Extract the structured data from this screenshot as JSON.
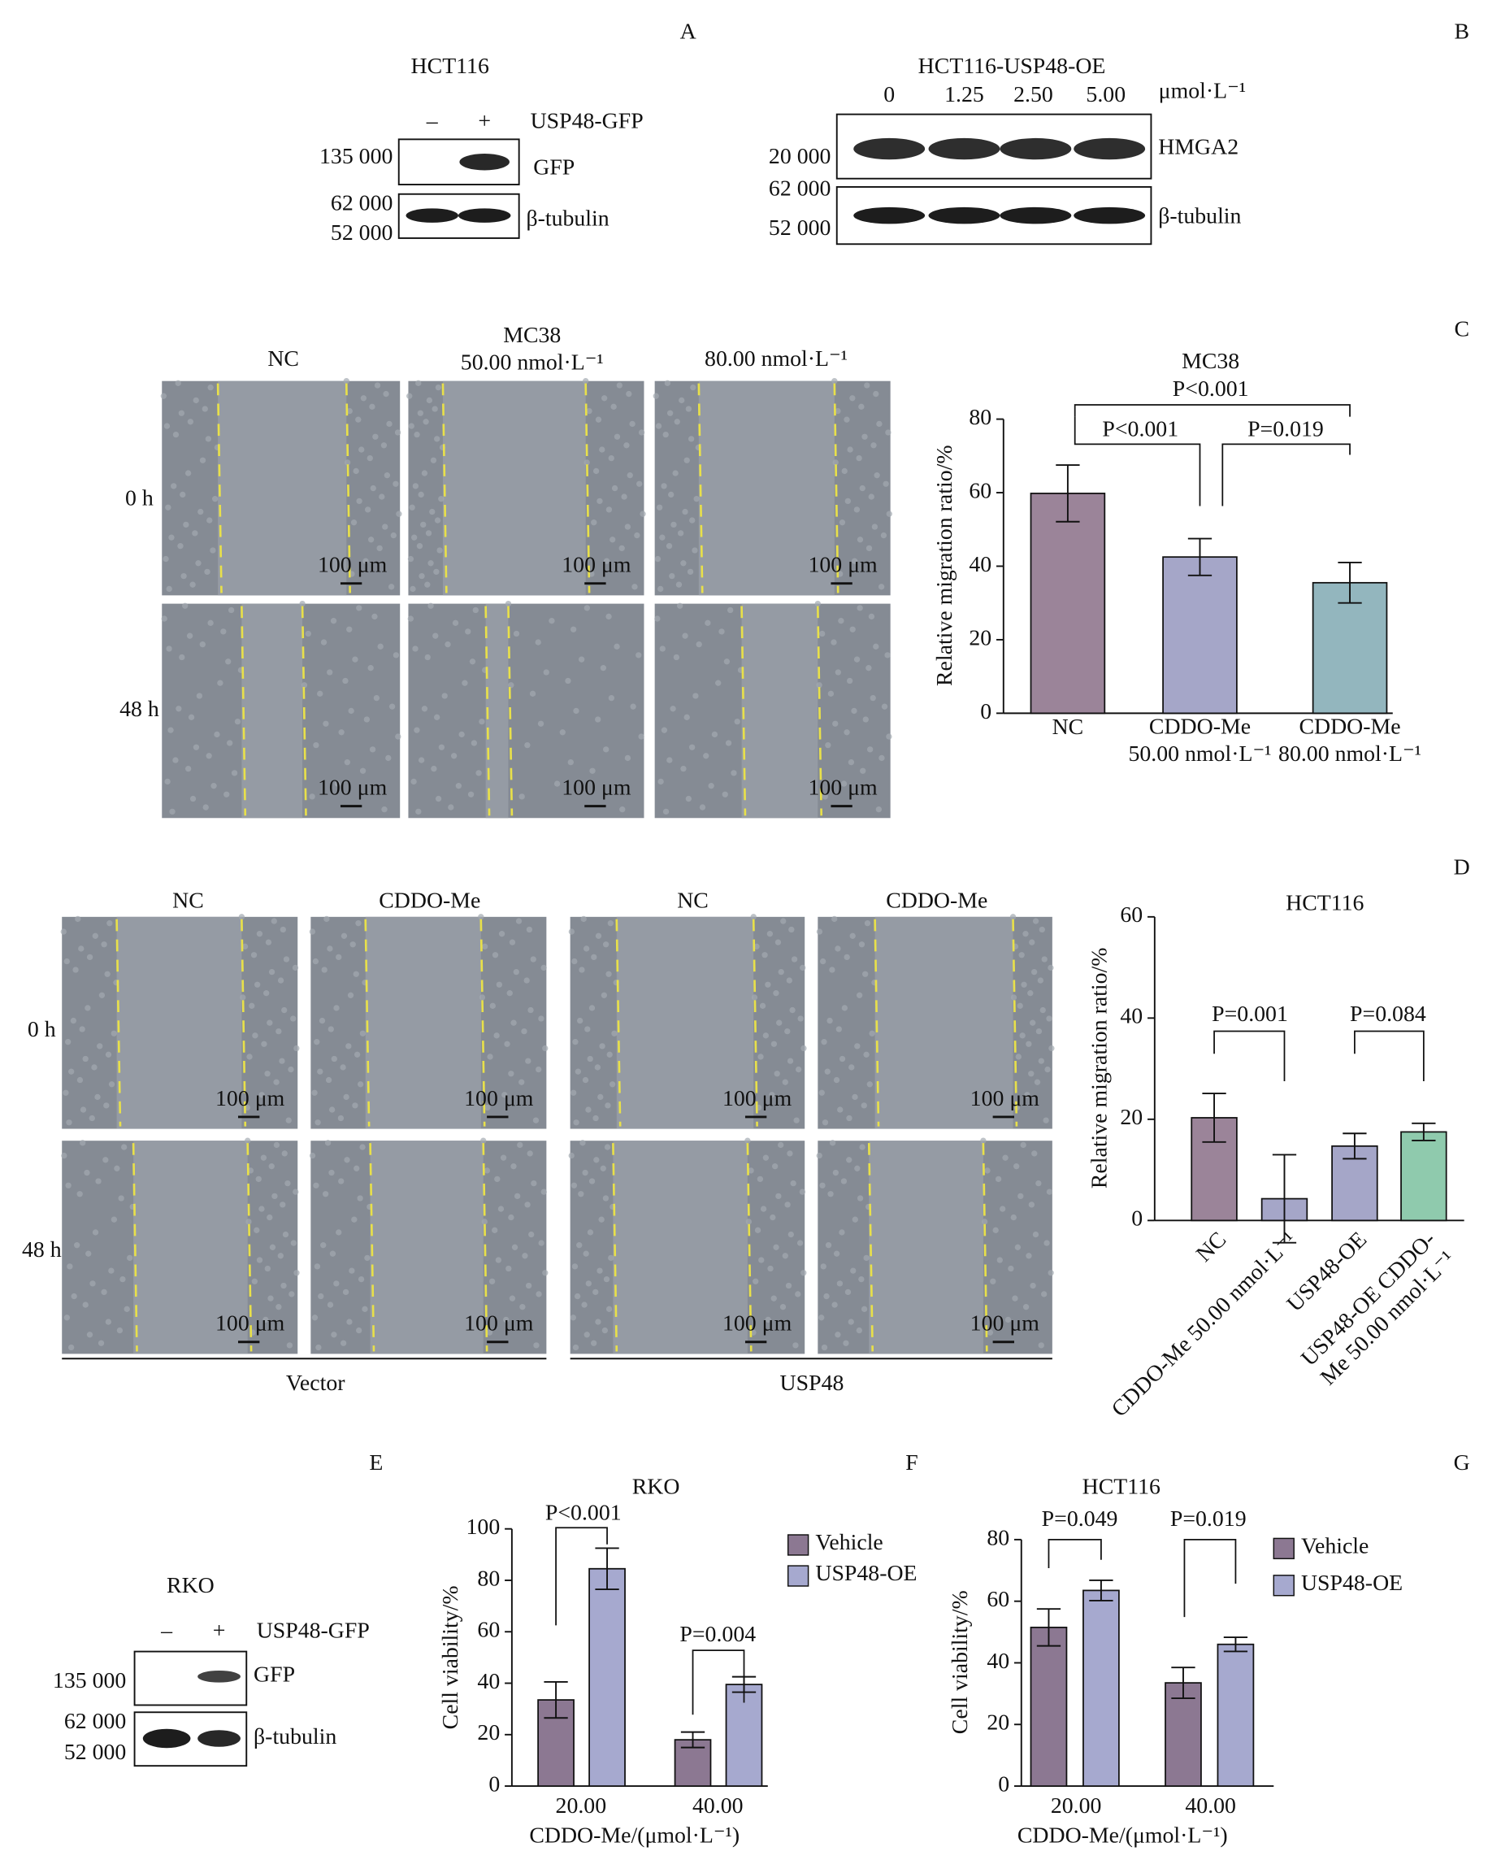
{
  "panel_labels": [
    "A",
    "B",
    "C",
    "D",
    "E",
    "F",
    "G"
  ],
  "blot_a": {
    "cell_line": "HCT116",
    "lanes": [
      "–",
      "+"
    ],
    "construct": "USP48-GFP",
    "markers": [
      "135 000",
      "62 000",
      "52 000"
    ],
    "bands": [
      "GFP",
      "β-tubulin"
    ]
  },
  "blot_b": {
    "title": "HCT116-USP48-OE",
    "lanes": [
      "0",
      "1.25",
      "2.50",
      "5.00"
    ],
    "unit": "μmol·L⁻¹",
    "markers": [
      "20 000",
      "62 000",
      "52 000"
    ],
    "bands": [
      "HMGA2",
      "β-tubulin"
    ]
  },
  "wound_c": {
    "header": "MC38",
    "columns": [
      "NC",
      "50.00 nmol·L⁻¹",
      "80.00 nmol·L⁻¹"
    ],
    "rows": [
      "0 h",
      "48 h"
    ],
    "scale_bar": "100 μm"
  },
  "wound_d": {
    "columns": [
      "NC",
      "CDDO-Me",
      "NC",
      "CDDO-Me"
    ],
    "rows": [
      "0 h",
      "48 h"
    ],
    "groups": [
      "Vector",
      "USP48"
    ],
    "scale_bar": "100 μm"
  },
  "blot_e": {
    "cell_line": "RKO",
    "lanes": [
      "–",
      "+"
    ],
    "construct": "USP48-GFP",
    "markers": [
      "135 000",
      "62 000",
      "52 000"
    ],
    "bands": [
      "GFP",
      "β-tubulin"
    ]
  },
  "chart_data": [
    {
      "type": "bar",
      "title": "MC38",
      "ylabel": "Relative migration ratio/%",
      "categories": [
        "NC",
        "CDDO-Me\n50.00 nmol·L⁻¹",
        "CDDO-Me\n80.00 nmol·L⁻¹"
      ],
      "values": [
        59.8,
        42.5,
        35.5
      ],
      "errors": [
        7.7,
        5,
        5.5
      ],
      "colors": [
        "#9b8499",
        "#a5a6c8",
        "#93b6be"
      ],
      "ylim": [
        0,
        80
      ],
      "yticks": [
        0,
        20,
        40,
        60,
        80
      ],
      "annotations": [
        "P<0.001",
        "P<0.001",
        "P=0.019"
      ]
    },
    {
      "type": "bar",
      "title": "HCT116",
      "ylabel": "Relative migration ratio/%",
      "categories": [
        "NC",
        "CDDO-Me 50.00 nmol·L⁻¹",
        "USP48-OE",
        "USP48-OE CDDO-\nMe 50.00 nmol·L⁻¹"
      ],
      "values": [
        20.3,
        4.3,
        14.7,
        17.5
      ],
      "errors": [
        4.8,
        8.7,
        2.5,
        1.7
      ],
      "colors": [
        "#9b8499",
        "#a5a6c8",
        "#a5a6c8",
        "#8fcaad"
      ],
      "ylim": [
        0,
        60
      ],
      "yticks": [
        0,
        20,
        40,
        60
      ],
      "annotations": [
        "P=0.001",
        "P=0.084"
      ]
    },
    {
      "type": "grouped_bar",
      "title": "RKO",
      "ylabel": "Cell viability/%",
      "xlabel": "CDDO-Me/(μmol·L⁻¹)",
      "categories": [
        "20.00",
        "40.00"
      ],
      "series": [
        {
          "name": "Vehicle",
          "color": "#8c7892",
          "values": [
            33.5,
            18
          ],
          "errors": [
            7,
            3
          ]
        },
        {
          "name": "USP48-OE",
          "color": "#a6a9cf",
          "values": [
            84.5,
            39.5
          ],
          "errors": [
            8,
            3
          ]
        }
      ],
      "ylim": [
        0,
        100
      ],
      "yticks": [
        0,
        20,
        40,
        60,
        80,
        100
      ],
      "annotations": [
        "P<0.001",
        "P=0.004"
      ]
    },
    {
      "type": "grouped_bar",
      "title": "HCT116",
      "ylabel": "Cell viability/%",
      "xlabel": "CDDO-Me/(μmol·L⁻¹)",
      "categories": [
        "20.00",
        "40.00"
      ],
      "series": [
        {
          "name": "Vehicle",
          "color": "#8c7892",
          "values": [
            51.5,
            33.5
          ],
          "errors": [
            6,
            5
          ]
        },
        {
          "name": "USP48-OE",
          "color": "#a6a9cf",
          "values": [
            63.5,
            46
          ],
          "errors": [
            3.3,
            2.3
          ]
        }
      ],
      "ylim": [
        0,
        80
      ],
      "yticks": [
        0,
        20,
        40,
        60,
        80
      ],
      "annotations": [
        "P=0.049",
        "P=0.019"
      ]
    }
  ]
}
